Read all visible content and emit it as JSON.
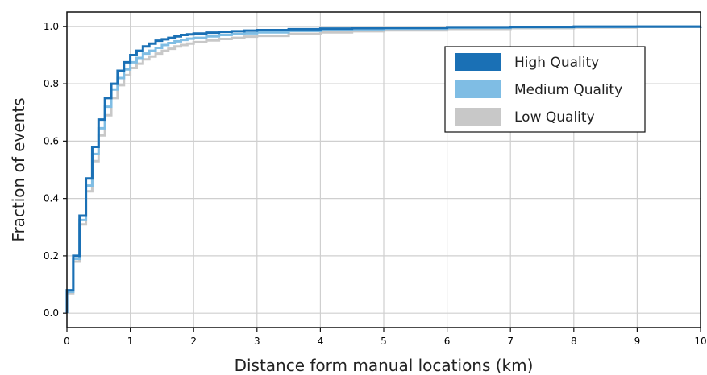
{
  "chart_data": {
    "type": "line",
    "step": true,
    "xlabel": "Distance form manual locations (km)",
    "ylabel": "Fraction of events",
    "xlim": [
      0,
      10
    ],
    "ylim": [
      -0.05,
      1.05
    ],
    "xticks": [
      "0",
      "1",
      "2",
      "3",
      "4",
      "5",
      "6",
      "7",
      "8",
      "9",
      "10"
    ],
    "yticks": [
      "0.0",
      "0.2",
      "0.4",
      "0.6",
      "0.8",
      "1.0"
    ],
    "grid": true,
    "legend_position": "upper-right",
    "series": [
      {
        "name": "High Quality",
        "color": "#1a70b5",
        "x": [
          0,
          0.1,
          0.2,
          0.3,
          0.4,
          0.5,
          0.6,
          0.7,
          0.8,
          0.9,
          1.0,
          1.1,
          1.2,
          1.3,
          1.4,
          1.5,
          1.6,
          1.7,
          1.8,
          1.9,
          2.0,
          2.2,
          2.4,
          2.6,
          2.8,
          3.0,
          3.5,
          4.0,
          4.5,
          5.0,
          6.0,
          7.0,
          8.0,
          9.0,
          10.0
        ],
        "y": [
          0.08,
          0.2,
          0.34,
          0.47,
          0.58,
          0.675,
          0.75,
          0.8,
          0.845,
          0.875,
          0.9,
          0.915,
          0.93,
          0.94,
          0.95,
          0.955,
          0.96,
          0.965,
          0.97,
          0.972,
          0.975,
          0.978,
          0.981,
          0.983,
          0.985,
          0.987,
          0.99,
          0.992,
          0.994,
          0.995,
          0.997,
          0.998,
          0.999,
          0.999,
          1.0
        ]
      },
      {
        "name": "Medium Quality",
        "color": "#7fbde4",
        "x": [
          0,
          0.1,
          0.2,
          0.3,
          0.4,
          0.5,
          0.6,
          0.7,
          0.8,
          0.9,
          1.0,
          1.1,
          1.2,
          1.3,
          1.4,
          1.5,
          1.6,
          1.7,
          1.8,
          1.9,
          2.0,
          2.2,
          2.4,
          2.6,
          2.8,
          3.0,
          3.5,
          4.0,
          4.5,
          5.0,
          6.0,
          7.0,
          8.0,
          9.0,
          10.0
        ],
        "y": [
          0.075,
          0.19,
          0.325,
          0.445,
          0.555,
          0.645,
          0.72,
          0.78,
          0.82,
          0.85,
          0.875,
          0.89,
          0.905,
          0.915,
          0.925,
          0.935,
          0.942,
          0.948,
          0.953,
          0.957,
          0.96,
          0.965,
          0.97,
          0.973,
          0.976,
          0.979,
          0.984,
          0.987,
          0.99,
          0.992,
          0.995,
          0.997,
          0.998,
          0.999,
          1.0
        ]
      },
      {
        "name": "Low Quality",
        "color": "#c8c8c8",
        "x": [
          0,
          0.1,
          0.2,
          0.3,
          0.4,
          0.5,
          0.6,
          0.7,
          0.8,
          0.9,
          1.0,
          1.1,
          1.2,
          1.3,
          1.4,
          1.5,
          1.6,
          1.7,
          1.8,
          1.9,
          2.0,
          2.2,
          2.4,
          2.6,
          2.8,
          3.0,
          3.5,
          4.0,
          4.5,
          5.0,
          6.0,
          7.0,
          8.0,
          9.0,
          10.0
        ],
        "y": [
          0.07,
          0.18,
          0.31,
          0.425,
          0.53,
          0.62,
          0.69,
          0.75,
          0.795,
          0.83,
          0.855,
          0.87,
          0.885,
          0.895,
          0.905,
          0.915,
          0.922,
          0.93,
          0.935,
          0.94,
          0.945,
          0.951,
          0.956,
          0.96,
          0.964,
          0.967,
          0.974,
          0.979,
          0.983,
          0.986,
          0.991,
          0.994,
          0.996,
          0.998,
          1.0
        ]
      }
    ]
  }
}
